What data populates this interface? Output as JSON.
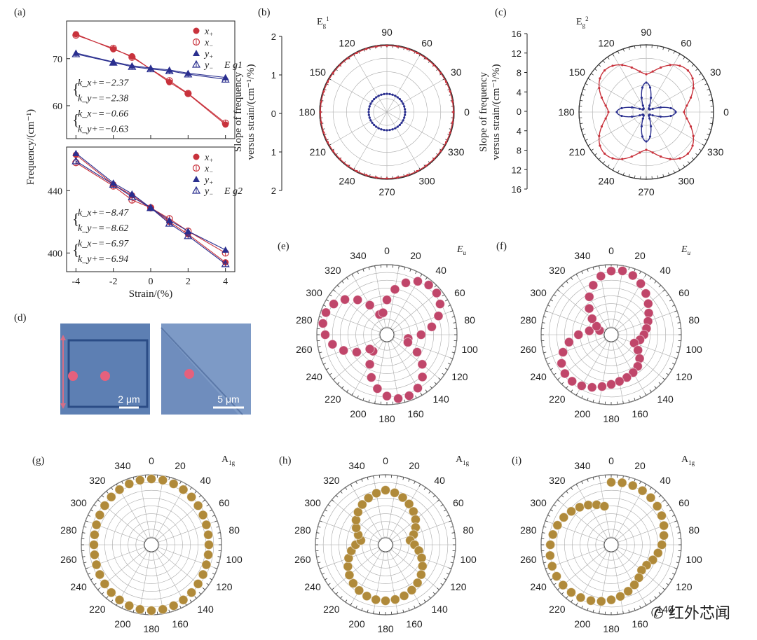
{
  "panels": {
    "a": {
      "label": "(a)"
    },
    "b": {
      "label": "(b)"
    },
    "c": {
      "label": "(c)"
    },
    "d": {
      "label": "(d)"
    },
    "e": {
      "label": "(e)"
    },
    "f": {
      "label": "(f)"
    },
    "g": {
      "label": "(g)"
    },
    "h": {
      "label": "(h)"
    },
    "i": {
      "label": "(i)"
    }
  },
  "chart_data": [
    {
      "id": "a-top",
      "type": "line",
      "mode_label": "E_g^1",
      "ylabel": "Frequency/(cm⁻¹)",
      "xlim": [
        -4.5,
        4.5
      ],
      "ylim": [
        53,
        78
      ],
      "yticks": [
        60,
        70
      ],
      "legend": [
        "x+",
        "x−",
        "y+",
        "y−"
      ],
      "series": [
        {
          "name": "x+",
          "x": [
            -4,
            -2,
            -1,
            1,
            2,
            4
          ],
          "values": [
            75.2,
            72,
            70.5,
            65,
            62.5,
            56
          ]
        },
        {
          "name": "x−",
          "x": [
            -4,
            -2,
            -1,
            1,
            2,
            4
          ],
          "values": [
            75,
            72.2,
            70.3,
            65.3,
            62.6,
            56.3
          ]
        },
        {
          "name": "y+",
          "x": [
            -4,
            -2,
            -1,
            0,
            1,
            2,
            4
          ],
          "values": [
            71.2,
            69.3,
            68.5,
            68,
            67.6,
            66.9,
            66
          ]
        },
        {
          "name": "y−",
          "x": [
            -4,
            -2,
            -1,
            0,
            1,
            2,
            4
          ],
          "values": [
            71,
            69.2,
            68.3,
            67.8,
            67.4,
            66.7,
            65.6
          ]
        }
      ],
      "annotations": [
        "k_x+=−2.37",
        "k_y−=−2.38",
        "k_x−=−0.66",
        "k_y+=−0.63"
      ],
      "colors": {
        "red": "#c8323c",
        "blue": "#2a2f8f"
      }
    },
    {
      "id": "a-bottom",
      "type": "line",
      "mode_label": "E_g^2",
      "xlabel": "Strain/(%)",
      "xlim": [
        -4.5,
        4.5
      ],
      "xticks": [
        -4,
        -2,
        0,
        2,
        4
      ],
      "ylim": [
        388,
        468
      ],
      "yticks": [
        400,
        440
      ],
      "legend": [
        "x+",
        "x−",
        "y+",
        "y−"
      ],
      "series": [
        {
          "name": "x+",
          "x": [
            -4,
            -2,
            -1,
            0,
            1,
            2,
            4
          ],
          "values": [
            463,
            444,
            437,
            429,
            420,
            412,
            394
          ]
        },
        {
          "name": "x−",
          "x": [
            -4,
            -2,
            -1,
            0,
            1,
            2,
            4
          ],
          "values": [
            458,
            443,
            434,
            429,
            422,
            414,
            400
          ]
        },
        {
          "name": "y+",
          "x": [
            -4,
            -2,
            -1,
            0,
            1,
            2,
            4
          ],
          "values": [
            464,
            445,
            438,
            429,
            421,
            414,
            402
          ]
        },
        {
          "name": "y−",
          "x": [
            -4,
            -2,
            -1,
            0,
            1,
            2,
            4
          ],
          "values": [
            459,
            444,
            436,
            429,
            419,
            411,
            393
          ]
        }
      ],
      "annotations": [
        "k_x+=−8.47",
        "k_y−=−8.62",
        "k_x−=−6.97",
        "k_y+=−6.94"
      ]
    },
    {
      "id": "b",
      "type": "polar-line",
      "mode_label": "E_g^1",
      "ylabel": "Slope of frequency versus strain/(cm⁻¹/%)",
      "radial_ticks": [
        "2",
        "1",
        "0",
        "1",
        "2"
      ],
      "angle_ticks": [
        "90",
        "60",
        "30",
        "0",
        "330",
        "300",
        "270",
        "240",
        "210",
        "180",
        "150",
        "120"
      ],
      "series": [
        {
          "name": "outer",
          "description": "circle",
          "values_r": 2.37
        },
        {
          "name": "inner",
          "description": "circle",
          "values_r": 0.65
        }
      ]
    },
    {
      "id": "c",
      "type": "polar-line",
      "mode_label": "E_g^2",
      "ylabel": "Slope of frequency versus strain/(cm⁻¹/%)",
      "radial_ticks": [
        "16",
        "12",
        "8",
        "4",
        "0",
        "4",
        "8",
        "12",
        "16"
      ],
      "angle_ticks": [
        "90",
        "60",
        "30",
        "0",
        "330",
        "300",
        "270",
        "240",
        "210",
        "180",
        "150",
        "120"
      ],
      "series": [
        {
          "name": "outer-lobes",
          "description": "four-lobed",
          "r_max": 14,
          "r_min": 9
        },
        {
          "name": "inner-lobes",
          "description": "four-lobed",
          "r_max": 7,
          "r_min": 1
        }
      ]
    },
    {
      "id": "e",
      "type": "polar-scatter",
      "mode_label": "E_u",
      "angle_ticks": [
        "0",
        "20",
        "40",
        "60",
        "80",
        "100",
        "120",
        "140",
        "160",
        "180",
        "200",
        "220",
        "240",
        "260",
        "280",
        "300",
        "320",
        "340"
      ]
    },
    {
      "id": "f",
      "type": "polar-scatter",
      "mode_label": "E_u",
      "angle_ticks": [
        "0",
        "20",
        "40",
        "60",
        "80",
        "100",
        "120",
        "140",
        "160",
        "180",
        "200",
        "220",
        "240",
        "260",
        "280",
        "300",
        "320",
        "340"
      ]
    },
    {
      "id": "g",
      "type": "polar-scatter",
      "mode_label": "A_1g",
      "angle_ticks": [
        "0",
        "20",
        "40",
        "60",
        "80",
        "100",
        "120",
        "140",
        "160",
        "180",
        "200",
        "220",
        "240",
        "260",
        "280",
        "300",
        "320",
        "340"
      ]
    },
    {
      "id": "h",
      "type": "polar-scatter",
      "mode_label": "A_1g",
      "angle_ticks": [
        "0",
        "20",
        "40",
        "60",
        "80",
        "100",
        "120",
        "140",
        "160",
        "180",
        "200",
        "220",
        "240",
        "260",
        "280",
        "300",
        "320",
        "340"
      ]
    },
    {
      "id": "i",
      "type": "polar-scatter",
      "mode_label": "A_1g",
      "angle_ticks": [
        "0",
        "20",
        "40",
        "60",
        "80",
        "100",
        "120",
        "140",
        "160",
        "180",
        "200",
        "220",
        "240",
        "260",
        "280",
        "300",
        "320",
        "340"
      ]
    }
  ],
  "micrographs": [
    {
      "scalebar": "2 μm"
    },
    {
      "scalebar": "5 μm"
    }
  ],
  "watermark": "红外芯闻",
  "colors": {
    "red": "#c8323c",
    "blue": "#2a2f8f",
    "pink": "#c0466a",
    "gold": "#b08a3a",
    "micro_bg": "#5d7fb3"
  }
}
